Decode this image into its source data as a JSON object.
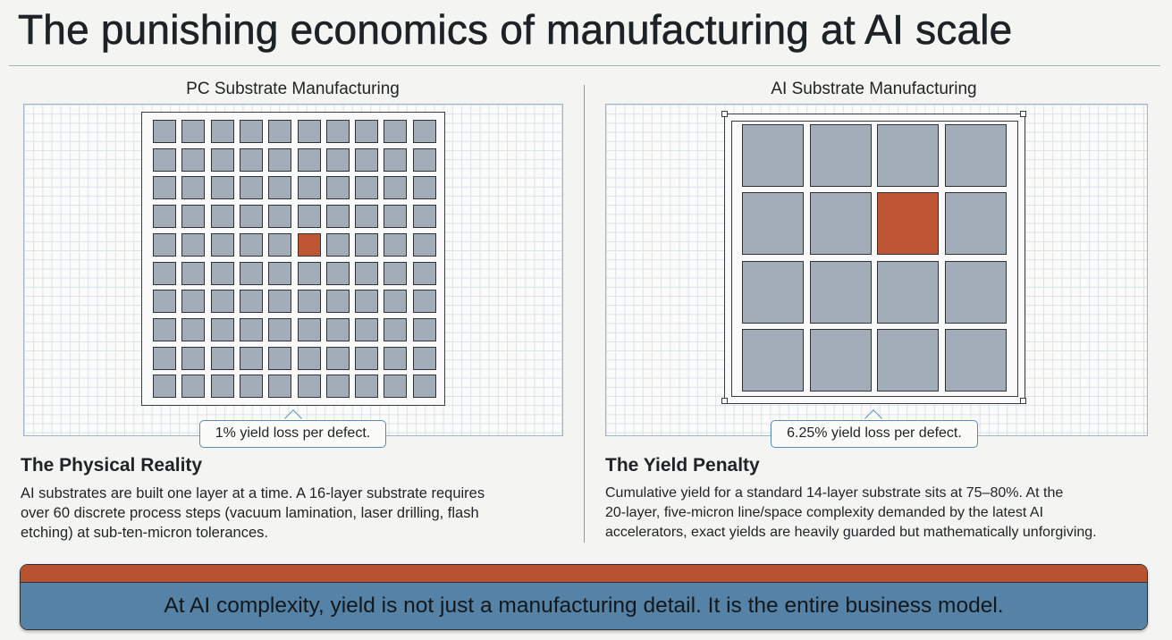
{
  "title": "The punishing economics of manufacturing at AI scale",
  "left_panel": {
    "title": "PC Substrate Manufacturing",
    "rows": 10,
    "cols": 10,
    "defect_row": 4,
    "defect_col": 5,
    "callout": "1% yield loss per defect."
  },
  "right_panel": {
    "title": "AI Substrate Manufacturing",
    "rows": 4,
    "cols": 4,
    "defect_row": 1,
    "defect_col": 2,
    "callout": "6.25% yield loss per defect."
  },
  "physical_reality": {
    "heading": "The Physical Reality",
    "lines": [
      "AI substrates are built one layer at a time. A 16-layer substrate requires",
      "over 60 discrete process steps (vacuum lamination, laser drilling, flash",
      "etching) at sub-ten-micron tolerances."
    ]
  },
  "yield_penalty": {
    "heading": "The Yield Penalty",
    "lines": [
      "Cumulative yield for a standard 14-layer substrate sits at 75–80%. At the",
      "20-layer, five-micron line/space complexity demanded by the latest AI",
      "accelerators, exact yields are heavily guarded but mathematically unforgiving."
    ]
  },
  "banner": {
    "text": "At AI complexity, yield is not just a manufacturing detail. It is the entire business model."
  },
  "colors": {
    "die": "#a3adb9",
    "defect": "#be5635",
    "accent_blue": "#5582a5",
    "accent_orange": "#b9532f"
  }
}
